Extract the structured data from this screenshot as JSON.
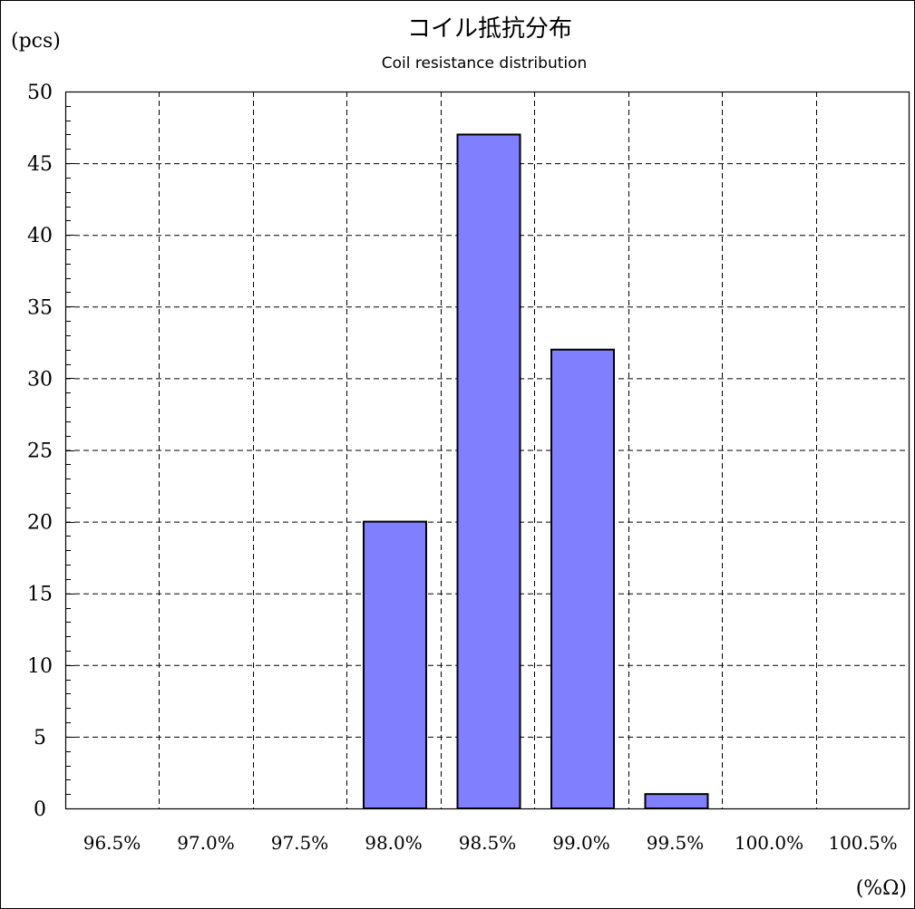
{
  "chart_data": {
    "type": "bar",
    "title": "コイル抵抗分布",
    "subtitle": "Coil resistance distribution",
    "ylabel": "(pcs)",
    "xlabel": "(%Ω)",
    "categories": [
      "96.5%",
      "97.0%",
      "97.5%",
      "98.0%",
      "98.5%",
      "99.0%",
      "99.5%",
      "100.0%",
      "100.5%"
    ],
    "values": [
      0,
      0,
      0,
      20,
      47,
      32,
      1,
      0,
      0
    ],
    "yticks": [
      "0",
      "5",
      "10",
      "15",
      "20",
      "25",
      "30",
      "35",
      "40",
      "45",
      "50"
    ],
    "ylim": [
      0,
      50
    ],
    "grid": true,
    "bar_color": "#8080ff"
  }
}
